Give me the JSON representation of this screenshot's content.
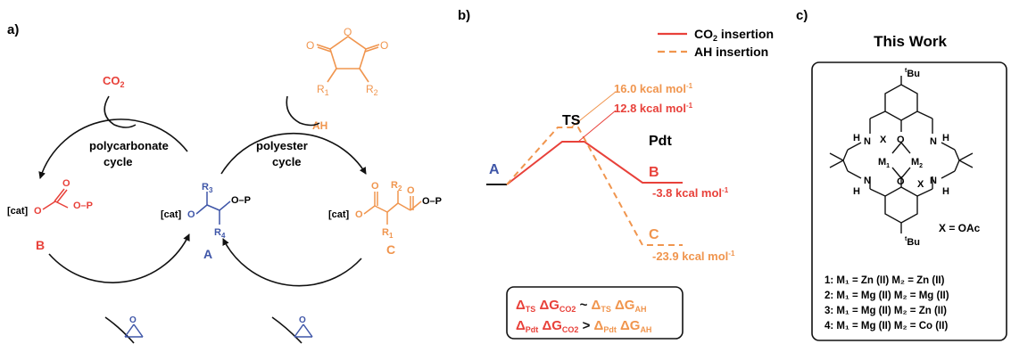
{
  "colors": {
    "red": "#e8413a",
    "orange": "#f0954e",
    "blue": "#3f56a8",
    "black": "#111111"
  },
  "panel_a": {
    "label": "a)",
    "co2": "CO",
    "co2_sub": "2",
    "ah": "AH",
    "r1": "R",
    "r1_sub": "1",
    "r2": "R",
    "r2_sub": "2",
    "cycle_left_1": "polycarbonate",
    "cycle_left_2": "cycle",
    "cycle_right_1": "polyester",
    "cycle_right_2": "cycle",
    "cat": "[cat]",
    "op": "O–P",
    "b": "B",
    "a": "A",
    "c": "C",
    "r3": "R",
    "r3_sub": "3",
    "r4": "R",
    "r4_sub": "4"
  },
  "panel_b": {
    "label": "b)",
    "legend_co2": "CO",
    "legend_co2_sub": "2",
    "legend_co2_rest": " insertion",
    "legend_ah": "AH insertion",
    "ts": "TS",
    "pdt": "Pdt",
    "a": "A",
    "b": "B",
    "c": "C",
    "e_ts_ah": "16.0 kcal mol",
    "e_ts_co2": "12.8 kcal mol",
    "e_b": "-3.8 kcal mol",
    "e_c": "-23.9 kcal mol",
    "sup": "-1",
    "box_line1_left": "Δ",
    "box_ts": "TS",
    "box_dg": " ΔG",
    "box_co2": "CO2",
    "box_sim": " ~ ",
    "box_ah": "AH",
    "box_pdt": "Pdt",
    "box_gt": " > "
  },
  "panel_c": {
    "label": "c)",
    "title": "This Work",
    "tbu_top": "Bu",
    "tbu_bot": "Bu",
    "t": "t",
    "h": "H",
    "n": "N",
    "o": "O",
    "x": "X",
    "m": "M",
    "sub1": "1",
    "sub2": "2",
    "x_def": "X = OAc",
    "entries": [
      "1: M₁ = Zn (II)  M₂ = Zn (II)",
      "2: M₁ = Mg (II) M₂ = Mg (II)",
      "3: M₁ = Mg (II) M₂ = Zn (II)",
      "4: M₁ = Mg (II) M₂ = Co (II)"
    ]
  }
}
